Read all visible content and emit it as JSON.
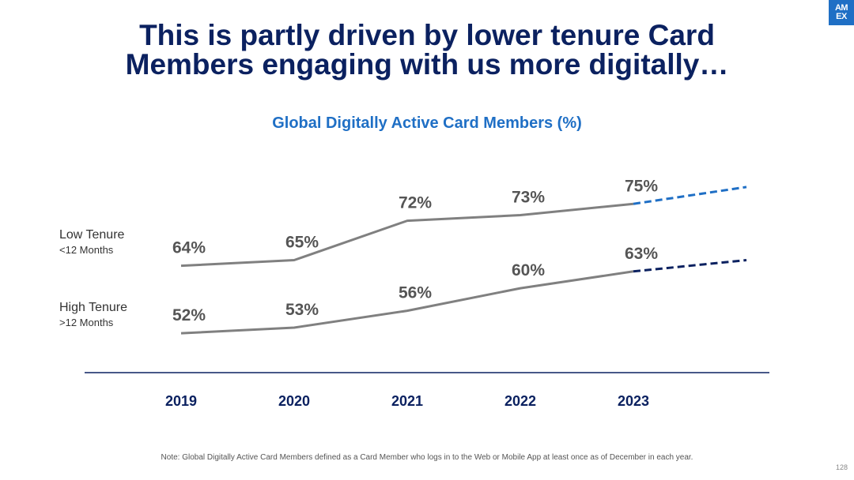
{
  "slide": {
    "title_line1": "This is partly driven by lower tenure Card",
    "title_line2": "Members engaging with us more digitally…",
    "logo_line1": "AM",
    "logo_line2": "EX",
    "footnote": "Note: Global Digitally Active Card Members defined as a Card Member who logs in to the Web or Mobile App at least once as of December in each year.",
    "page_number": "128"
  },
  "chart_data": {
    "type": "line",
    "title": "Global Digitally Active Card Members (%)",
    "categories": [
      "2019",
      "2020",
      "2021",
      "2022",
      "2023"
    ],
    "series": [
      {
        "name": "Low Tenure",
        "sublabel": "<12 Months",
        "values": [
          64,
          65,
          72,
          73,
          75
        ],
        "labels": [
          "64%",
          "65%",
          "72%",
          "73%",
          "75%"
        ],
        "projection_end": 78,
        "line_color": "#808080",
        "projection_color": "#1f6fc5"
      },
      {
        "name": "High Tenure",
        "sublabel": ">12 Months",
        "values": [
          52,
          53,
          56,
          60,
          63
        ],
        "labels": [
          "52%",
          "53%",
          "56%",
          "60%",
          "63%"
        ],
        "projection_end": 65,
        "line_color": "#808080",
        "projection_color": "#0b2160"
      }
    ],
    "xlabel": "",
    "ylabel": "",
    "ylim": [
      45,
      85
    ],
    "grid": false,
    "legend": "left"
  }
}
